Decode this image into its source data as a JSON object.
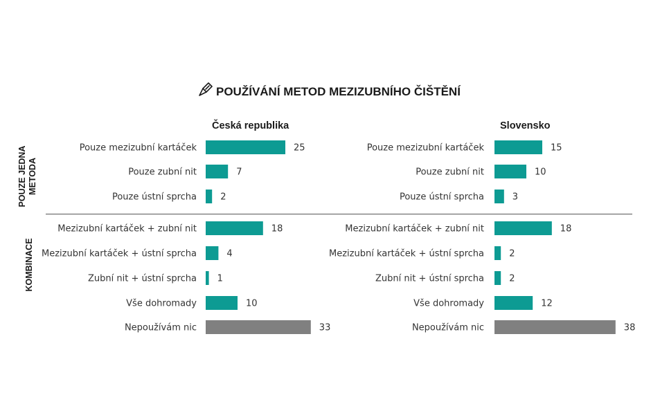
{
  "header": {
    "title": "POUŽÍVÁNÍ METOD MEZIZUBNÍHO ČIŠTĚNÍ",
    "icon": "interdental-brush-icon"
  },
  "groups": {
    "single": [
      "POUZE JEDNA",
      "METODA"
    ],
    "combo": "KOMBINACE"
  },
  "colors": {
    "primary": "#0d9b93",
    "neutral": "#808080",
    "divider": "#555555"
  },
  "chart_data": [
    {
      "type": "bar",
      "orientation": "horizontal",
      "title": "Česká republika",
      "categories": [
        "Pouze mezizubní kartáček",
        "Pouze zubní nit",
        "Pouze ústní sprcha",
        "Mezizubní kartáček + zubní nit",
        "Mezizubní kartáček + ústní sprcha",
        "Zubní nit + ústní sprcha",
        "Vše dohromady",
        "Nepoužívám nic"
      ],
      "values": [
        25,
        7,
        2,
        18,
        4,
        1,
        10,
        33
      ],
      "xlim": [
        0,
        40
      ]
    },
    {
      "type": "bar",
      "orientation": "horizontal",
      "title": "Slovensko",
      "categories": [
        "Pouze mezizubní kartáček",
        "Pouze zubní nit",
        "Pouze ústní sprcha",
        "Mezizubní kartáček + zubní nit",
        "Mezizubní kartáček + ústní sprcha",
        "Zubní nit + ústní sprcha",
        "Vše dohromady",
        "Nepoužívám nic"
      ],
      "values": [
        15,
        10,
        3,
        18,
        2,
        2,
        12,
        38
      ],
      "xlim": [
        0,
        40
      ]
    }
  ]
}
